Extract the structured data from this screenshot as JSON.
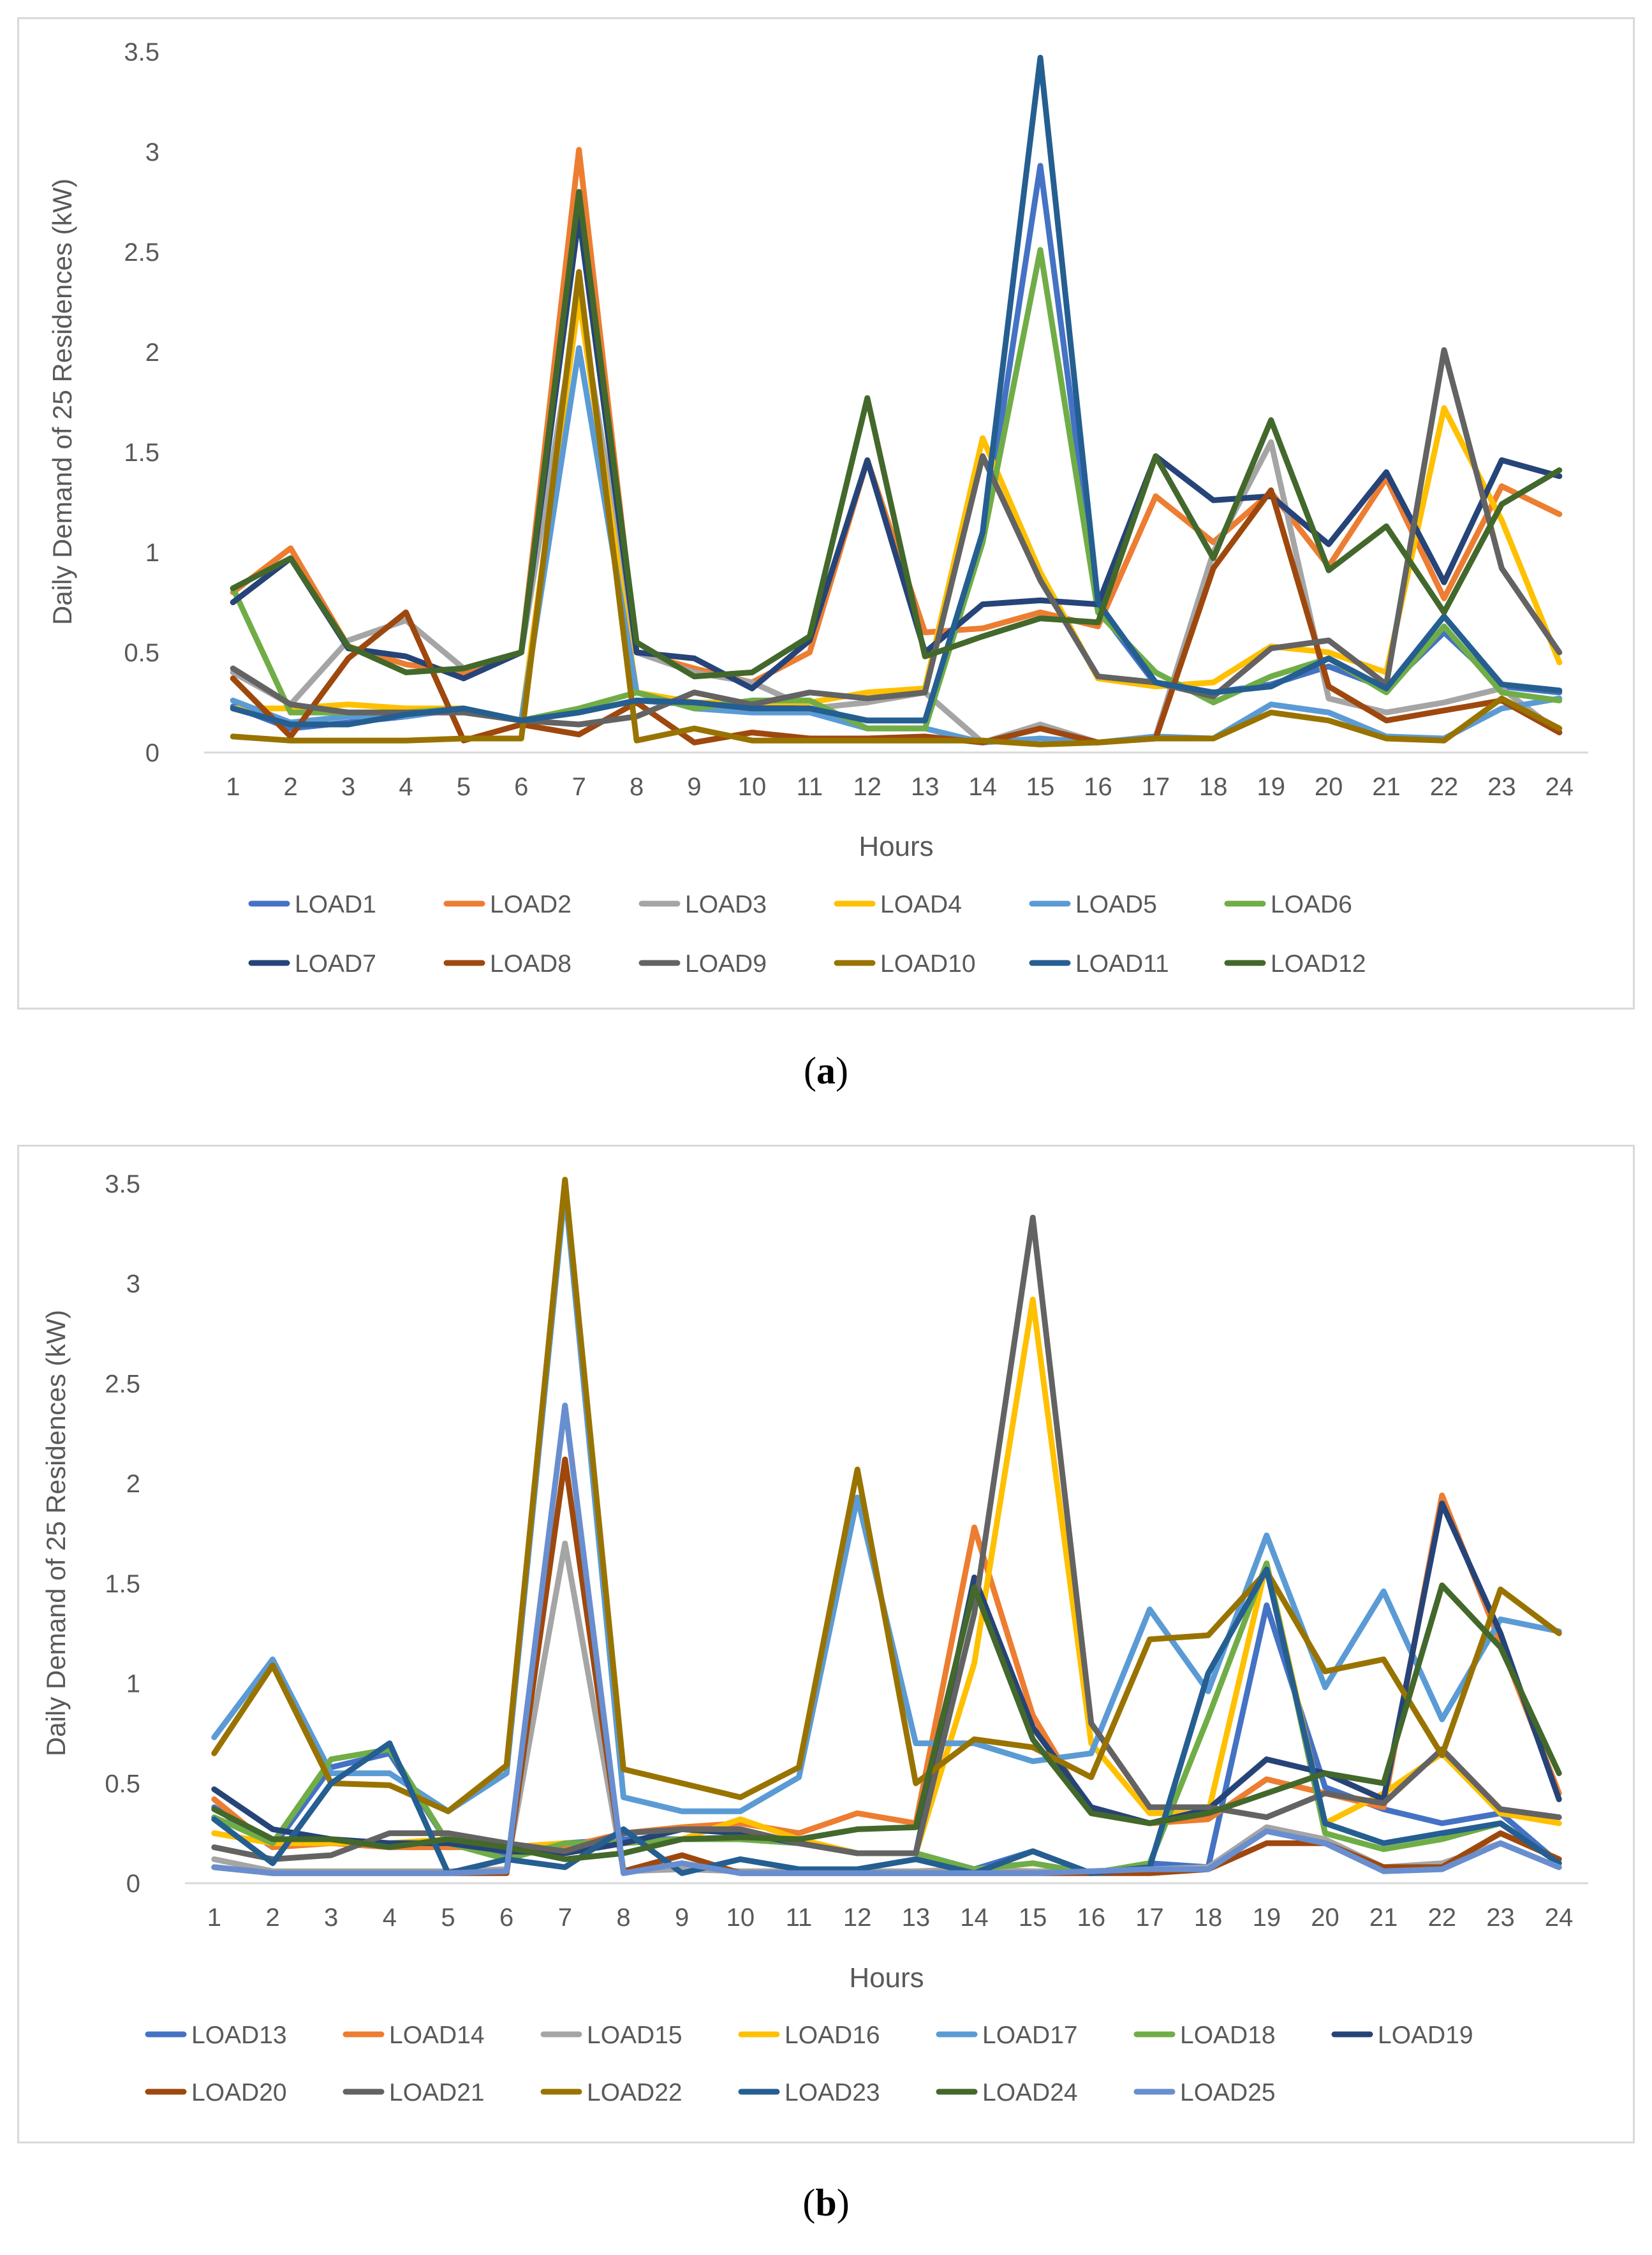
{
  "captions": {
    "a_open": "(",
    "a_letter": "a",
    "a_close": ")",
    "b_open": "(",
    "b_letter": "b",
    "b_close": ")"
  },
  "chart_data": [
    {
      "id": "a",
      "type": "line",
      "title": "",
      "xlabel": "Hours",
      "ylabel": "Daily Demand of 25 Residences (kW)",
      "ylim": [
        0,
        3.5
      ],
      "yticks": [
        "0",
        "0.5",
        "1",
        "1.5",
        "2",
        "2.5",
        "3",
        "3.5"
      ],
      "categories": [
        "1",
        "2",
        "3",
        "4",
        "5",
        "6",
        "7",
        "8",
        "9",
        "10",
        "11",
        "12",
        "13",
        "14",
        "15",
        "16",
        "17",
        "18",
        "19",
        "20",
        "21",
        "22",
        "23",
        "24"
      ],
      "grid": false,
      "legend_position": "bottom",
      "legend_rows": [
        6,
        6
      ],
      "series": [
        {
          "name": "LOAD1",
          "color": "#4472c4",
          "values": [
            0.23,
            0.12,
            0.15,
            0.18,
            0.22,
            0.16,
            0.2,
            0.26,
            0.24,
            0.23,
            0.22,
            0.16,
            0.16,
            1.05,
            2.93,
            0.72,
            0.34,
            0.3,
            0.34,
            0.43,
            0.32,
            0.6,
            0.33,
            0.3
          ]
        },
        {
          "name": "LOAD2",
          "color": "#ed7d31",
          "values": [
            0.8,
            1.02,
            0.53,
            0.44,
            0.4,
            0.5,
            3.01,
            0.5,
            0.42,
            0.35,
            0.5,
            1.46,
            0.6,
            0.62,
            0.7,
            0.63,
            1.28,
            1.05,
            1.3,
            0.93,
            1.37,
            0.77,
            1.33,
            1.19
          ]
        },
        {
          "name": "LOAD3",
          "color": "#a5a5a5",
          "values": [
            0.4,
            0.24,
            0.56,
            0.66,
            0.42,
            0.5,
            2.27,
            0.5,
            0.4,
            0.35,
            0.22,
            0.25,
            0.3,
            0.05,
            0.14,
            0.05,
            0.08,
            1.0,
            1.55,
            0.27,
            0.2,
            0.25,
            0.32,
            0.1
          ]
        },
        {
          "name": "LOAD4",
          "color": "#ffc000",
          "values": [
            0.22,
            0.22,
            0.24,
            0.22,
            0.22,
            0.16,
            2.27,
            0.3,
            0.25,
            0.25,
            0.25,
            0.3,
            0.32,
            1.57,
            0.9,
            0.37,
            0.33,
            0.35,
            0.53,
            0.5,
            0.4,
            1.72,
            1.16,
            0.45
          ]
        },
        {
          "name": "LOAD5",
          "color": "#5b9bd5",
          "values": [
            0.26,
            0.15,
            0.18,
            0.18,
            0.22,
            0.16,
            2.02,
            0.3,
            0.22,
            0.2,
            0.2,
            0.12,
            0.12,
            0.05,
            0.07,
            0.05,
            0.08,
            0.07,
            0.24,
            0.2,
            0.08,
            0.07,
            0.22,
            0.27
          ]
        },
        {
          "name": "LOAD6",
          "color": "#70ad47",
          "values": [
            0.82,
            0.2,
            0.2,
            0.2,
            0.22,
            0.16,
            0.22,
            0.3,
            0.22,
            0.26,
            0.26,
            0.12,
            0.12,
            1.05,
            2.51,
            0.7,
            0.4,
            0.25,
            0.38,
            0.47,
            0.3,
            0.63,
            0.3,
            0.26
          ]
        },
        {
          "name": "LOAD7",
          "color": "#264478",
          "values": [
            0.75,
            0.97,
            0.52,
            0.48,
            0.37,
            0.5,
            2.68,
            0.5,
            0.47,
            0.32,
            0.56,
            1.46,
            0.5,
            0.74,
            0.76,
            0.74,
            1.48,
            1.26,
            1.28,
            1.04,
            1.4,
            0.85,
            1.46,
            1.38
          ]
        },
        {
          "name": "LOAD8",
          "color": "#9e480e",
          "values": [
            0.37,
            0.08,
            0.47,
            0.7,
            0.06,
            0.14,
            0.09,
            0.25,
            0.05,
            0.1,
            0.07,
            0.07,
            0.08,
            0.05,
            0.12,
            0.05,
            0.07,
            0.92,
            1.31,
            0.33,
            0.16,
            0.21,
            0.26,
            0.1
          ]
        },
        {
          "name": "LOAD9",
          "color": "#636363",
          "values": [
            0.42,
            0.24,
            0.2,
            0.2,
            0.2,
            0.16,
            0.14,
            0.18,
            0.3,
            0.24,
            0.3,
            0.27,
            0.3,
            1.48,
            0.86,
            0.38,
            0.35,
            0.28,
            0.52,
            0.56,
            0.34,
            2.01,
            0.92,
            0.5
          ]
        },
        {
          "name": "LOAD10",
          "color": "#997300",
          "values": [
            0.08,
            0.06,
            0.06,
            0.06,
            0.07,
            0.07,
            2.4,
            0.06,
            0.12,
            0.06,
            0.06,
            0.06,
            0.06,
            0.06,
            0.04,
            0.05,
            0.07,
            0.07,
            0.2,
            0.16,
            0.07,
            0.06,
            0.27,
            0.12
          ]
        },
        {
          "name": "LOAD11",
          "color": "#255e91",
          "values": [
            0.22,
            0.14,
            0.14,
            0.19,
            0.22,
            0.16,
            0.2,
            0.26,
            0.25,
            0.22,
            0.22,
            0.16,
            0.16,
            1.1,
            3.47,
            0.75,
            0.35,
            0.3,
            0.33,
            0.47,
            0.32,
            0.68,
            0.34,
            0.31
          ]
        },
        {
          "name": "LOAD12",
          "color": "#43682b",
          "values": [
            0.82,
            0.97,
            0.53,
            0.4,
            0.42,
            0.5,
            2.8,
            0.55,
            0.38,
            0.4,
            0.58,
            1.77,
            0.48,
            0.58,
            0.67,
            0.65,
            1.48,
            0.97,
            1.66,
            0.91,
            1.13,
            0.7,
            1.24,
            1.41
          ]
        }
      ]
    },
    {
      "id": "b",
      "type": "line",
      "title": "",
      "xlabel": "Hours",
      "ylabel": "Daily Demand of 25 Residences (kW)",
      "ylim": [
        0,
        3.5
      ],
      "yticks": [
        "0",
        "0.5",
        "1",
        "1.5",
        "2",
        "2.5",
        "3",
        "3.5"
      ],
      "categories": [
        "1",
        "2",
        "3",
        "4",
        "5",
        "6",
        "7",
        "8",
        "9",
        "10",
        "11",
        "12",
        "13",
        "14",
        "15",
        "16",
        "17",
        "18",
        "19",
        "20",
        "21",
        "22",
        "23",
        "24"
      ],
      "grid": false,
      "legend_position": "bottom",
      "legend_rows": [
        7,
        6
      ],
      "series": [
        {
          "name": "LOAD13",
          "color": "#4472c4",
          "values": [
            0.38,
            0.18,
            0.58,
            0.65,
            0.2,
            0.15,
            0.2,
            0.22,
            0.22,
            0.22,
            0.2,
            0.15,
            0.15,
            0.07,
            0.16,
            0.05,
            0.1,
            0.08,
            1.39,
            0.48,
            0.37,
            0.3,
            0.35,
            0.1
          ]
        },
        {
          "name": "LOAD14",
          "color": "#ed7d31",
          "values": [
            0.42,
            0.18,
            0.2,
            0.18,
            0.18,
            0.18,
            0.18,
            0.25,
            0.28,
            0.3,
            0.25,
            0.35,
            0.3,
            1.78,
            0.84,
            0.35,
            0.3,
            0.32,
            0.52,
            0.45,
            0.38,
            1.94,
            1.2,
            0.45
          ]
        },
        {
          "name": "LOAD15",
          "color": "#a5a5a5",
          "values": [
            0.12,
            0.06,
            0.06,
            0.06,
            0.06,
            0.07,
            1.7,
            0.06,
            0.07,
            0.06,
            0.06,
            0.06,
            0.06,
            0.07,
            0.06,
            0.06,
            0.07,
            0.08,
            0.28,
            0.22,
            0.08,
            0.1,
            0.2,
            0.08
          ]
        },
        {
          "name": "LOAD16",
          "color": "#ffc000",
          "values": [
            0.25,
            0.2,
            0.2,
            0.2,
            0.22,
            0.18,
            0.2,
            0.2,
            0.22,
            0.32,
            0.22,
            0.15,
            0.15,
            1.1,
            2.92,
            0.7,
            0.35,
            0.35,
            1.6,
            0.3,
            0.45,
            0.65,
            0.35,
            0.3
          ]
        },
        {
          "name": "LOAD17",
          "color": "#5b9bd5",
          "values": [
            0.73,
            1.12,
            0.55,
            0.55,
            0.36,
            0.55,
            3.47,
            0.43,
            0.36,
            0.36,
            0.53,
            1.93,
            0.7,
            0.7,
            0.61,
            0.65,
            1.37,
            0.96,
            1.74,
            0.98,
            1.46,
            0.82,
            1.32,
            1.26
          ]
        },
        {
          "name": "LOAD18",
          "color": "#70ad47",
          "values": [
            0.33,
            0.2,
            0.62,
            0.67,
            0.2,
            0.12,
            0.2,
            0.2,
            0.22,
            0.22,
            0.2,
            0.15,
            0.15,
            0.07,
            0.1,
            0.05,
            0.1,
            0.83,
            1.6,
            0.25,
            0.17,
            0.22,
            0.3,
            0.1
          ]
        },
        {
          "name": "LOAD19",
          "color": "#264478",
          "values": [
            0.47,
            0.27,
            0.22,
            0.2,
            0.2,
            0.16,
            0.15,
            0.2,
            0.27,
            0.25,
            0.2,
            0.15,
            0.15,
            1.53,
            0.78,
            0.38,
            0.3,
            0.37,
            0.62,
            0.55,
            0.42,
            1.9,
            1.25,
            0.42
          ]
        },
        {
          "name": "LOAD20",
          "color": "#9e480e",
          "values": [
            0.08,
            0.05,
            0.05,
            0.05,
            0.05,
            0.05,
            2.12,
            0.06,
            0.14,
            0.05,
            0.05,
            0.05,
            0.05,
            0.05,
            0.05,
            0.05,
            0.05,
            0.07,
            0.2,
            0.2,
            0.08,
            0.08,
            0.25,
            0.12
          ]
        },
        {
          "name": "LOAD21",
          "color": "#636363",
          "values": [
            0.18,
            0.12,
            0.14,
            0.25,
            0.25,
            0.2,
            0.16,
            0.25,
            0.27,
            0.27,
            0.2,
            0.15,
            0.15,
            1.35,
            3.33,
            0.8,
            0.38,
            0.38,
            0.33,
            0.45,
            0.4,
            0.67,
            0.37,
            0.33
          ]
        },
        {
          "name": "LOAD22",
          "color": "#997300",
          "values": [
            0.65,
            1.09,
            0.5,
            0.49,
            0.36,
            0.59,
            3.52,
            0.57,
            0.5,
            0.43,
            0.58,
            2.07,
            0.5,
            0.72,
            0.68,
            0.53,
            1.22,
            1.24,
            1.56,
            1.06,
            1.12,
            0.64,
            1.47,
            1.25
          ]
        },
        {
          "name": "LOAD23",
          "color": "#255e91",
          "values": [
            0.32,
            0.1,
            0.5,
            0.7,
            0.05,
            0.12,
            0.08,
            0.27,
            0.05,
            0.12,
            0.07,
            0.07,
            0.12,
            0.05,
            0.16,
            0.05,
            0.08,
            1.05,
            1.57,
            0.3,
            0.2,
            0.25,
            0.3,
            0.1
          ]
        },
        {
          "name": "LOAD24",
          "color": "#43682b",
          "values": [
            0.37,
            0.22,
            0.22,
            0.18,
            0.22,
            0.18,
            0.12,
            0.15,
            0.22,
            0.23,
            0.22,
            0.27,
            0.28,
            1.48,
            0.72,
            0.35,
            0.3,
            0.35,
            0.45,
            0.55,
            0.5,
            1.49,
            1.18,
            0.55
          ]
        },
        {
          "name": "LOAD25",
          "color": "#698ed0",
          "values": [
            0.08,
            0.05,
            0.05,
            0.05,
            0.05,
            0.06,
            2.39,
            0.05,
            0.1,
            0.05,
            0.05,
            0.05,
            0.05,
            0.05,
            0.05,
            0.06,
            0.07,
            0.07,
            0.26,
            0.2,
            0.06,
            0.07,
            0.2,
            0.08
          ]
        }
      ]
    }
  ]
}
